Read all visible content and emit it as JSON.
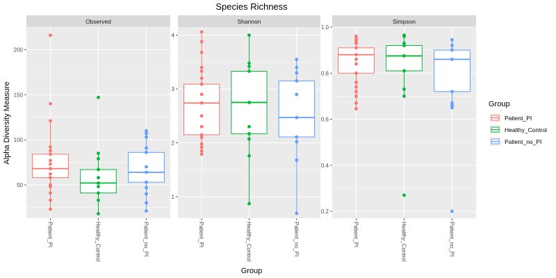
{
  "title": "Species Richness",
  "xlabel": "Group",
  "ylabel": "Alpha Diversity Measure",
  "legend": {
    "title": "Group",
    "position": "right",
    "entries": [
      {
        "name": "Patient_PI",
        "color": "#F8766D"
      },
      {
        "name": "Healthy_Control",
        "color": "#00BA38"
      },
      {
        "name": "Patient_no_PI",
        "color": "#619CFF"
      }
    ]
  },
  "colors": {
    "panel_bg": "#EBEBEB",
    "strip_bg": "#D9D9D9",
    "grid": "#FFFFFF"
  },
  "chart_data": {
    "type": "boxplot",
    "grid": true,
    "categories": [
      "Patient_PI",
      "Healthy_Control",
      "Patient_no_PI"
    ],
    "facets": [
      {
        "name": "Observed",
        "ylim": [
          13,
          225
        ],
        "yticks": [
          50,
          100,
          150,
          200
        ],
        "boxes": [
          {
            "group": "Patient_PI",
            "q1": 58,
            "median": 68,
            "q3": 84,
            "whisker_low": 23,
            "whisker_high": 122,
            "points": [
              216,
              140,
              121,
              92,
              88,
              84,
              77,
              73,
              68,
              62,
              58,
              50,
              48,
              41,
              33,
              23
            ]
          },
          {
            "group": "Healthy_Control",
            "q1": 41,
            "median": 52,
            "q3": 67,
            "whisker_low": 18,
            "whisker_high": 85,
            "points": [
              147,
              85,
              79,
              67,
              58,
              52,
              48,
              41,
              33,
              18
            ]
          },
          {
            "group": "Patient_no_PI",
            "q1": 53,
            "median": 64,
            "q3": 86,
            "whisker_low": 21,
            "whisker_high": 110,
            "points": [
              110,
              107,
              103,
              91,
              86,
              70,
              64,
              53,
              47,
              40,
              30,
              21
            ]
          }
        ]
      },
      {
        "name": "Shannon",
        "ylim": [
          0.6,
          4.15
        ],
        "yticks": [
          1,
          2,
          3,
          4
        ],
        "boxes": [
          {
            "group": "Patient_PI",
            "q1": 2.15,
            "median": 2.74,
            "q3": 3.09,
            "whisker_low": 1.79,
            "whisker_high": 4.06,
            "points": [
              4.06,
              3.88,
              3.68,
              3.4,
              3.33,
              3.2,
              3.09,
              2.9,
              2.74,
              2.5,
              2.3,
              2.15,
              2.1,
              1.98,
              1.92,
              1.85,
              1.79
            ]
          },
          {
            "group": "Healthy_Control",
            "q1": 2.17,
            "median": 2.75,
            "q3": 3.33,
            "whisker_low": 0.87,
            "whisker_high": 4.0,
            "points": [
              4.0,
              3.48,
              3.42,
              3.33,
              2.75,
              2.3,
              2.17,
              2.07,
              1.76,
              0.87
            ]
          },
          {
            "group": "Patient_no_PI",
            "q1": 2.11,
            "median": 2.47,
            "q3": 3.15,
            "whisker_low": 0.69,
            "whisker_high": 3.55,
            "points": [
              3.55,
              3.4,
              3.3,
              3.15,
              2.9,
              2.47,
              2.11,
              2.02,
              1.68,
              0.69
            ]
          }
        ]
      },
      {
        "name": "Simpson",
        "ylim": [
          0.17,
          1.0
        ],
        "yticks": [
          0.2,
          0.4,
          0.6,
          0.8,
          1.0
        ],
        "yticklabels": [
          "0.2",
          "0.4",
          "0.6",
          "0.8",
          "1.0"
        ],
        "boxes": [
          {
            "group": "Patient_PI",
            "q1": 0.8,
            "median": 0.88,
            "q3": 0.91,
            "whisker_low": 0.645,
            "whisker_high": 0.96,
            "points": [
              0.96,
              0.95,
              0.94,
              0.93,
              0.91,
              0.88,
              0.86,
              0.84,
              0.8,
              0.76,
              0.74,
              0.72,
              0.7,
              0.67,
              0.645
            ]
          },
          {
            "group": "Healthy_Control",
            "q1": 0.81,
            "median": 0.875,
            "q3": 0.92,
            "whisker_low": 0.7,
            "whisker_high": 0.965,
            "points": [
              0.965,
              0.96,
              0.93,
              0.92,
              0.875,
              0.81,
              0.73,
              0.7,
              0.27
            ]
          },
          {
            "group": "Patient_no_PI",
            "q1": 0.72,
            "median": 0.86,
            "q3": 0.9,
            "whisker_low": 0.65,
            "whisker_high": 0.945,
            "points": [
              0.945,
              0.92,
              0.9,
              0.86,
              0.72,
              0.67,
              0.66,
              0.65,
              0.2
            ]
          }
        ]
      }
    ]
  }
}
